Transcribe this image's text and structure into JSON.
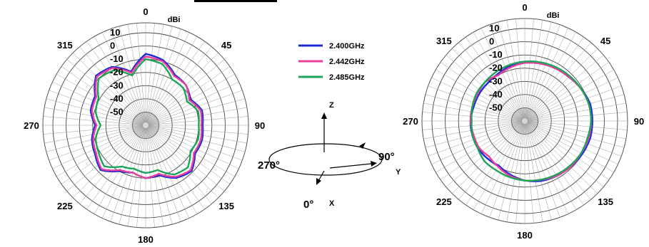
{
  "legend": {
    "entries": [
      {
        "label": "2.400GHz",
        "color": "#1f2bd8"
      },
      {
        "label": "2.442GHz",
        "color": "#e8409a"
      },
      {
        "label": "2.485GHz",
        "color": "#1ea35a"
      }
    ]
  },
  "axes_diagram": {
    "z_label": "Z",
    "x_label": "X",
    "y_label": "Y",
    "deg_270": "270°",
    "deg_90": "90°",
    "deg_0": "0°"
  },
  "chart_data": [
    {
      "type": "polar-line",
      "unit_label": "dBi",
      "rlim": [
        -60,
        10
      ],
      "ring_labels": [
        "10",
        "0",
        "-10",
        "-20",
        "-30",
        "-40",
        "-50"
      ],
      "angle_labels": [
        {
          "angle": 0,
          "text": "0"
        },
        {
          "angle": 45,
          "text": "45"
        },
        {
          "angle": 90,
          "text": "90"
        },
        {
          "angle": 135,
          "text": "135"
        },
        {
          "angle": 180,
          "text": "180"
        },
        {
          "angle": 225,
          "text": "225"
        },
        {
          "angle": 270,
          "text": "270"
        },
        {
          "angle": 315,
          "text": "315"
        }
      ],
      "grid": true,
      "theta": [
        0,
        15,
        30,
        45,
        60,
        75,
        90,
        105,
        120,
        135,
        150,
        165,
        180,
        195,
        210,
        225,
        240,
        255,
        270,
        285,
        300,
        315,
        330,
        345
      ],
      "series": [
        {
          "name": "2.400GHz",
          "color": "#1f2bd8",
          "values": [
            -6,
            -9,
            -16,
            -17,
            -21,
            -16,
            -17,
            -16,
            -17,
            -11,
            -14,
            -21,
            -20,
            -23,
            -20,
            -12,
            -16,
            -18,
            -22,
            -17,
            -16,
            -7,
            -9,
            -18
          ]
        },
        {
          "name": "2.442GHz",
          "color": "#e8409a",
          "values": [
            -8,
            -10,
            -17,
            -17,
            -22,
            -17,
            -18,
            -17,
            -18,
            -12,
            -15,
            -22,
            -20,
            -23,
            -21,
            -13,
            -17,
            -19,
            -23,
            -18,
            -17,
            -8,
            -10,
            -19
          ]
        },
        {
          "name": "2.485GHz",
          "color": "#1ea35a",
          "values": [
            -10,
            -12,
            -20,
            -20,
            -24,
            -19,
            -20,
            -19,
            -21,
            -15,
            -17,
            -25,
            -24,
            -26,
            -24,
            -16,
            -19,
            -21,
            -26,
            -21,
            -19,
            -10,
            -12,
            -21
          ]
        }
      ]
    },
    {
      "type": "polar-line",
      "unit_label": "dBi",
      "rlim": [
        -60,
        10
      ],
      "ring_labels": [
        "10",
        "0",
        "-10",
        "-20",
        "-30",
        "-40",
        "-50"
      ],
      "angle_labels": [
        {
          "angle": 0,
          "text": "0"
        },
        {
          "angle": 45,
          "text": "45"
        },
        {
          "angle": 90,
          "text": "90"
        },
        {
          "angle": 135,
          "text": "135"
        },
        {
          "angle": 180,
          "text": "180"
        },
        {
          "angle": 225,
          "text": "225"
        },
        {
          "angle": 270,
          "text": "270"
        },
        {
          "angle": 315,
          "text": "315"
        }
      ],
      "grid": true,
      "theta": [
        0,
        15,
        30,
        45,
        60,
        75,
        90,
        105,
        120,
        135,
        150,
        165,
        180,
        195,
        210,
        225,
        240,
        255,
        270,
        285,
        300,
        315,
        330,
        345
      ],
      "series": [
        {
          "name": "2.400GHz",
          "color": "#1f2bd8",
          "values": [
            -16,
            -15,
            -14,
            -13,
            -11,
            -9,
            -9,
            -9,
            -10,
            -11,
            -12,
            -13,
            -15,
            -18,
            -21,
            -20,
            -19,
            -19,
            -19,
            -20,
            -20,
            -20,
            -19,
            -17
          ]
        },
        {
          "name": "2.442GHz",
          "color": "#e8409a",
          "values": [
            -16,
            -15,
            -14,
            -13,
            -11,
            -10,
            -10,
            -10,
            -11,
            -11,
            -12,
            -14,
            -15,
            -17,
            -20,
            -22,
            -20,
            -20,
            -19,
            -19,
            -19,
            -18,
            -20,
            -18
          ]
        },
        {
          "name": "2.485GHz",
          "color": "#1ea35a",
          "values": [
            -15,
            -14,
            -13,
            -12,
            -11,
            -10,
            -10,
            -11,
            -11,
            -12,
            -13,
            -14,
            -15,
            -16,
            -17,
            -17,
            -19,
            -19,
            -20,
            -19,
            -18,
            -18,
            -17,
            -16
          ]
        }
      ]
    }
  ]
}
